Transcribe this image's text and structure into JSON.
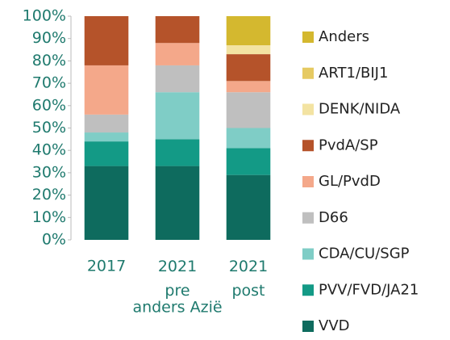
{
  "chart_data": {
    "type": "stacked_bar",
    "x_label": "anders Azië",
    "categories": [
      "2017",
      "2021 pre",
      "2021 post"
    ],
    "series": [
      {
        "name": "VVD",
        "color": "#0e6b5e",
        "values": [
          33,
          33,
          29
        ]
      },
      {
        "name": "PVV/FVD/JA21",
        "color": "#139a86",
        "values": [
          11,
          12,
          12
        ]
      },
      {
        "name": "CDA/CU/SGP",
        "color": "#7fcdc6",
        "values": [
          4,
          21,
          9
        ]
      },
      {
        "name": "D66",
        "color": "#bfbfbf",
        "values": [
          8,
          12,
          16
        ]
      },
      {
        "name": "GL/PvdD",
        "color": "#f4a88a",
        "values": [
          22,
          10,
          5
        ]
      },
      {
        "name": "PvdA/SP",
        "color": "#b5532a",
        "values": [
          22,
          12,
          12
        ]
      },
      {
        "name": "DENK/NIDA",
        "color": "#f3e3a2",
        "values": [
          0,
          0,
          4
        ]
      },
      {
        "name": "ART1/BIJ1",
        "color": "#e6ca62",
        "values": [
          0,
          0,
          0
        ]
      },
      {
        "name": "Anders",
        "color": "#d4b82f",
        "values": [
          0,
          0,
          13
        ]
      }
    ],
    "ylim": [
      0,
      100
    ],
    "yticks": [
      {
        "value": 0,
        "label": "0%"
      },
      {
        "value": 10,
        "label": "10%"
      },
      {
        "value": 20,
        "label": "20%"
      },
      {
        "value": 30,
        "label": "30%"
      },
      {
        "value": 40,
        "label": "40%"
      },
      {
        "value": 50,
        "label": "50%"
      },
      {
        "value": 60,
        "label": "60%"
      },
      {
        "value": 70,
        "label": "70%"
      },
      {
        "value": 80,
        "label": "80%"
      },
      {
        "value": 90,
        "label": "90%"
      },
      {
        "value": 100,
        "label": "100%"
      }
    ],
    "legend": "right"
  }
}
